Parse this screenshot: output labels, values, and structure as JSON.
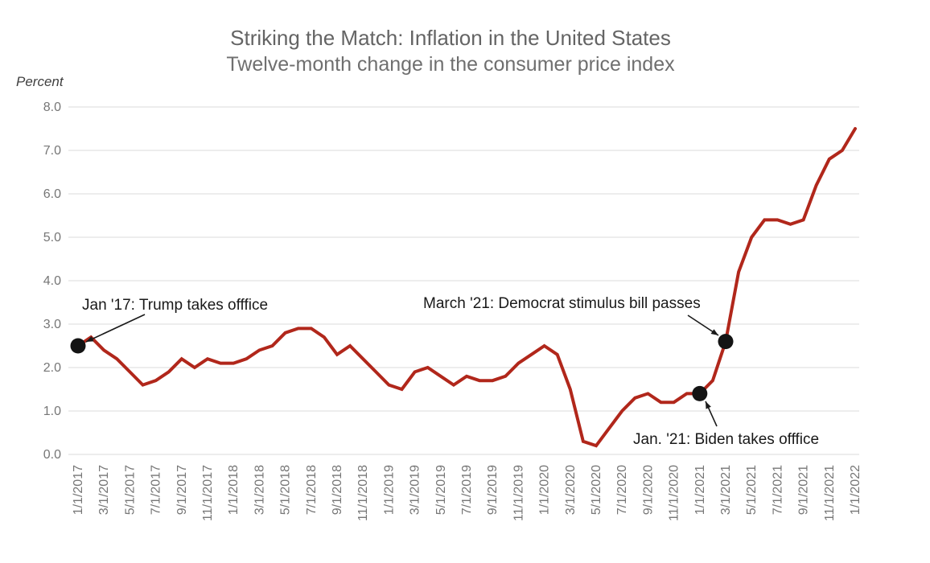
{
  "title": "Striking the Match: Inflation in the United States",
  "subtitle": "Twelve-month change in the consumer price index",
  "y_axis_unit_label": "Percent",
  "annotations": {
    "trump": "Jan '17: Trump takes offfice",
    "stimulus": "March '21: Democrat stimulus bill passes",
    "biden": "Jan. '21: Biden takes offfice"
  },
  "colors": {
    "line": "#B1271B",
    "marker": "#141414",
    "arrow": "#1a1a1a",
    "grid": "#E2E2E2",
    "axis_text": "#767676",
    "title_text": "#646464",
    "annotation_text": "#191919"
  },
  "chart_data": {
    "type": "line",
    "title": "Striking the Match: Inflation in the United States",
    "subtitle": "Twelve-month change in the consumer price index",
    "ylabel": "Percent",
    "ylim": [
      0,
      8
    ],
    "grid": "horizontal",
    "legend": "none",
    "y_tick_labels": [
      "0.0",
      "1.0",
      "2.0",
      "3.0",
      "4.0",
      "5.0",
      "6.0",
      "7.0",
      "8.0"
    ],
    "x_start": "1/1/2017",
    "x_interval": "monthly",
    "x_tick_every_months": 2,
    "x_tick_labels": [
      "1/1/2017",
      "3/1/2017",
      "5/1/2017",
      "7/1/2017",
      "9/1/2017",
      "11/1/2017",
      "1/1/2018",
      "3/1/2018",
      "5/1/2018",
      "7/1/2018",
      "9/1/2018",
      "11/1/2018",
      "1/1/2019",
      "3/1/2019",
      "5/1/2019",
      "7/1/2019",
      "9/1/2019",
      "11/1/2019",
      "1/1/2020",
      "3/1/2020",
      "5/1/2020",
      "7/1/2020",
      "9/1/2020",
      "11/1/2020",
      "1/1/2021",
      "3/1/2021",
      "5/1/2021",
      "7/1/2021",
      "9/1/2021",
      "11/1/2021",
      "1/1/2022"
    ],
    "series": [
      {
        "name": "Twelve-month change in the consumer price index (%)",
        "values": [
          2.5,
          2.7,
          2.4,
          2.2,
          1.9,
          1.6,
          1.7,
          1.9,
          2.2,
          2.0,
          2.2,
          2.1,
          2.1,
          2.2,
          2.4,
          2.5,
          2.8,
          2.9,
          2.9,
          2.7,
          2.3,
          2.5,
          2.2,
          1.9,
          1.6,
          1.5,
          1.9,
          2.0,
          1.8,
          1.6,
          1.8,
          1.7,
          1.7,
          1.8,
          2.1,
          2.3,
          2.5,
          2.3,
          1.5,
          0.3,
          0.2,
          0.6,
          1.0,
          1.3,
          1.4,
          1.2,
          1.2,
          1.4,
          1.4,
          1.7,
          2.6,
          4.2,
          5.0,
          5.4,
          5.4,
          5.3,
          5.4,
          6.2,
          6.8,
          7.0,
          7.5
        ]
      }
    ],
    "markers": [
      {
        "label": "Jan '17: Trump takes offfice",
        "month_index": 0,
        "value": 2.5
      },
      {
        "label": "Jan. '21: Biden takes offfice",
        "month_index": 48,
        "value": 1.4
      },
      {
        "label": "March '21: Democrat stimulus bill passes",
        "month_index": 50,
        "value": 2.6
      }
    ]
  }
}
